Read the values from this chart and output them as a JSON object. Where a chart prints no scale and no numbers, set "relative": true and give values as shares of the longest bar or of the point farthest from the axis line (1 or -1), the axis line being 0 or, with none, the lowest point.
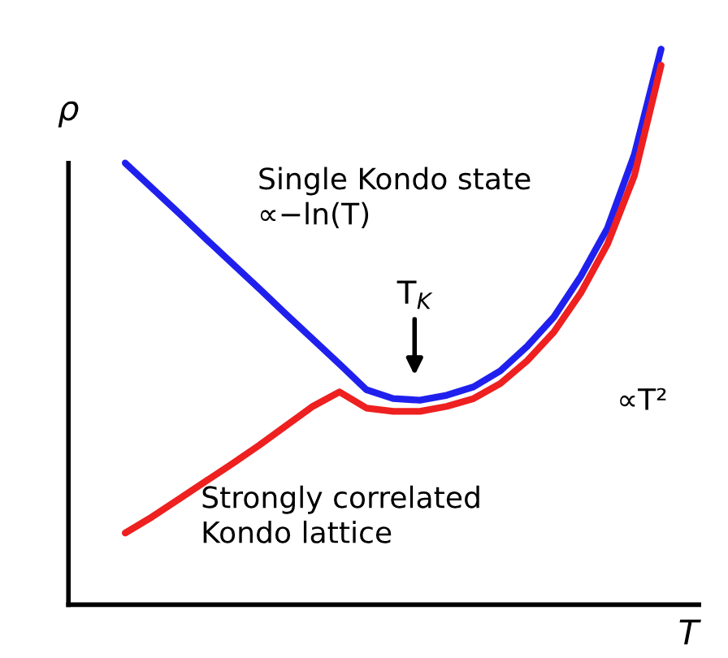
{
  "chart_data": {
    "type": "line",
    "relative": true,
    "xlabel": "T",
    "ylabel": "ρ",
    "categories": [
      null,
      null,
      null,
      null,
      null,
      null,
      null,
      null,
      null,
      null,
      null,
      null,
      null,
      null,
      null,
      null,
      null,
      null,
      null,
      null,
      null
    ],
    "series": [
      {
        "color": "#2020ee",
        "values": [
          0.795,
          0.75,
          0.705,
          0.659,
          0.614,
          0.569,
          0.523,
          0.478,
          0.433,
          0.387,
          0.371,
          0.368,
          0.377,
          0.392,
          0.421,
          0.465,
          0.518,
          0.591,
          0.678,
          0.81,
          1
        ]
      },
      {
        "color": "#ee2020",
        "values": [
          0.129,
          0.158,
          0.19,
          0.222,
          0.254,
          0.287,
          0.322,
          0.357,
          0.383,
          0.354,
          0.348,
          0.348,
          0.357,
          0.371,
          0.398,
          0.439,
          0.491,
          0.561,
          0.649,
          0.772,
          0.971
        ]
      }
    ],
    "annotations": [
      "Single Kondo state\n∝−ln(T)",
      "T$_{K}$",
      "∝T²",
      "Strongly correlated\nKondo lattice"
    ],
    "legend": false,
    "marker": "none",
    "line_style": "solid"
  }
}
